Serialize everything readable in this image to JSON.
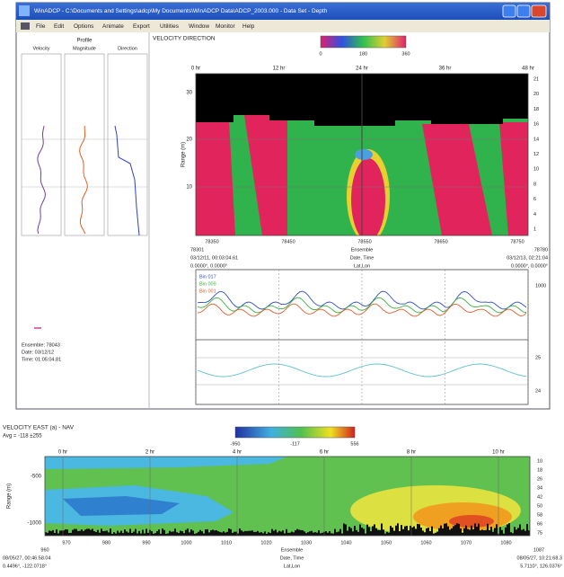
{
  "window": {
    "title": "WinADCP - C:\\Documents and Settings\\adcp\\My Documents\\WinADCP Data\\ADCP_2003.000 - Data Set - Depth",
    "menu": [
      "File",
      "Edit",
      "Options",
      "Animate",
      "Export",
      "Utilities",
      "Window",
      "Monitor",
      "Help"
    ]
  },
  "profile": {
    "title": "Profile",
    "columns": [
      "Velocity",
      "Magnitude",
      "Direction"
    ],
    "ensemble": "Ensemble: 78043",
    "date": "Date: 03/12/12",
    "time": "Time: 01:05:04.81"
  },
  "direction_plot": {
    "title": "VELOCITY DIRECTION",
    "colorbar_ticks": [
      "0",
      "180",
      "360"
    ],
    "hour_ticks": [
      "0 hr",
      "12 hr",
      "24 hr",
      "36 hr",
      "48 hr"
    ],
    "y_label": "Range (m)",
    "y_ticks": [
      "30",
      "20",
      "10"
    ],
    "bin_ticks": [
      "21",
      "20",
      "18",
      "16",
      "14",
      "12",
      "10",
      "8",
      "6",
      "4",
      "1"
    ],
    "ensemble_ticks": [
      "78350",
      "78450",
      "78550",
      "78650",
      "78750"
    ],
    "footer_labels": [
      "Ensemble",
      "Date, Time",
      "Lat,Lon"
    ],
    "start": [
      "78301",
      "03/12/11, 00:03:04.61",
      "0.0000°, 0.0000°"
    ],
    "end": [
      "78780",
      "03/12/13, 02:21:04",
      "0.0000°, 0.0000°"
    ]
  },
  "timeseries": {
    "legend": [
      "Bin 017",
      "Bin 009",
      "Bin 001"
    ],
    "right_ticks": [
      "1000",
      "25",
      "24"
    ]
  },
  "east_plot": {
    "title": "VELOCITY EAST (a) - NAV",
    "subtitle": "Avg = -118 ±255",
    "colorbar_ticks": [
      "-950",
      "-117",
      "556"
    ],
    "hour_ticks": [
      "0 hr",
      "2 hr",
      "4 hr",
      "6 hr",
      "8 hr",
      "10 hr"
    ],
    "y_label": "Range (m)",
    "y_ticks": [
      "-500",
      "-1000"
    ],
    "bin_ticks": [
      "10",
      "18",
      "26",
      "34",
      "42",
      "50",
      "58",
      "66",
      "75"
    ],
    "ensemble_ticks": [
      "970",
      "980",
      "990",
      "1000",
      "1010",
      "1020",
      "1030",
      "1040",
      "1050",
      "1060",
      "1070",
      "1080"
    ],
    "footer_labels": [
      "Ensemble",
      "Date, Time",
      "Lat,Lon"
    ],
    "start": [
      "960",
      "08/05/27, 00:46:58.04",
      "0.4496°, -122.0718°"
    ],
    "end": [
      "1087",
      "08/05/27, 10:21:68.3",
      "5.7110°, 126.0376°"
    ]
  }
}
